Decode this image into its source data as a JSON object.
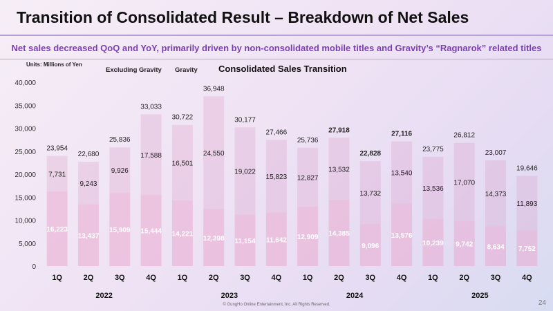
{
  "page": {
    "title": "Transition of Consolidated Result – Breakdown of Net Sales",
    "subtitle": "Net sales decreased QoQ and YoY, primarily driven by non-consolidated mobile titles and Gravity’s “Ragnarok” related titles",
    "units": "Units: Millions of Yen",
    "legend_excluding": "Excluding Gravity",
    "legend_gravity": "Gravity",
    "copyright": "© GungHo Online Entertainment, Inc. All Rights Reserved.",
    "page_number": "24"
  },
  "chart_data": {
    "type": "bar",
    "stacked": true,
    "title": "Consolidated Sales Transition",
    "ylabel": "",
    "xlabel": "",
    "ylim": [
      0,
      40000
    ],
    "yticks": [
      "0",
      "5,000",
      "10,000",
      "15,000",
      "20,000",
      "25,000",
      "30,000",
      "35,000",
      "40,000"
    ],
    "categories": [
      "1Q",
      "2Q",
      "3Q",
      "4Q",
      "1Q",
      "2Q",
      "3Q",
      "4Q",
      "1Q",
      "2Q",
      "3Q",
      "4Q",
      "1Q",
      "2Q",
      "3Q",
      "4Q"
    ],
    "years": [
      {
        "label": "2022",
        "start": 0,
        "end": 3
      },
      {
        "label": "2023",
        "start": 4,
        "end": 7
      },
      {
        "label": "2024",
        "start": 8,
        "end": 11
      },
      {
        "label": "2025",
        "start": 12,
        "end": 15
      }
    ],
    "series": [
      {
        "name": "Excluding Gravity",
        "values": [
          16223,
          13437,
          15909,
          15444,
          14221,
          12398,
          11154,
          11642,
          12909,
          14385,
          9096,
          13576,
          10239,
          9742,
          8634,
          7752
        ],
        "color": "#e9a9cf"
      },
      {
        "name": "Gravity",
        "values": [
          7731,
          9243,
          9926,
          17588,
          16501,
          24550,
          19022,
          15823,
          12827,
          13532,
          13732,
          13540,
          13536,
          17070,
          14373,
          11893
        ],
        "color": "#d78fc0"
      }
    ],
    "totals": [
      23954,
      22680,
      25836,
      33033,
      30722,
      36948,
      30177,
      27466,
      25736,
      27918,
      22828,
      27116,
      23775,
      26812,
      23007,
      19646
    ],
    "value_labels_excluding": [
      "16,223",
      "13,437",
      "15,909",
      "15,444",
      "14,221",
      "12,398",
      "11,154",
      "11,642",
      "12,909",
      "14,385",
      "9,096",
      "13,576",
      "10,239",
      "9,742",
      "8,634",
      "7,752"
    ],
    "value_labels_gravity": [
      "7,731",
      "9,243",
      "9,926",
      "17,588",
      "16,501",
      "24,550",
      "19,022",
      "15,823",
      "12,827",
      "13,532",
      "13,732",
      "13,540",
      "13,536",
      "17,070",
      "14,373",
      "11,893"
    ],
    "value_labels_total": [
      "23,954",
      "22,680",
      "25,836",
      "33,033",
      "30,722",
      "36,948",
      "30,177",
      "27,466",
      "25,736",
      "27,918",
      "22,828",
      "27,116",
      "23,775",
      "26,812",
      "23,007",
      "19,646"
    ],
    "label_color_excluding": "#ffffff",
    "label_color_other": "#222222",
    "grid": false,
    "legend": "top-left"
  }
}
